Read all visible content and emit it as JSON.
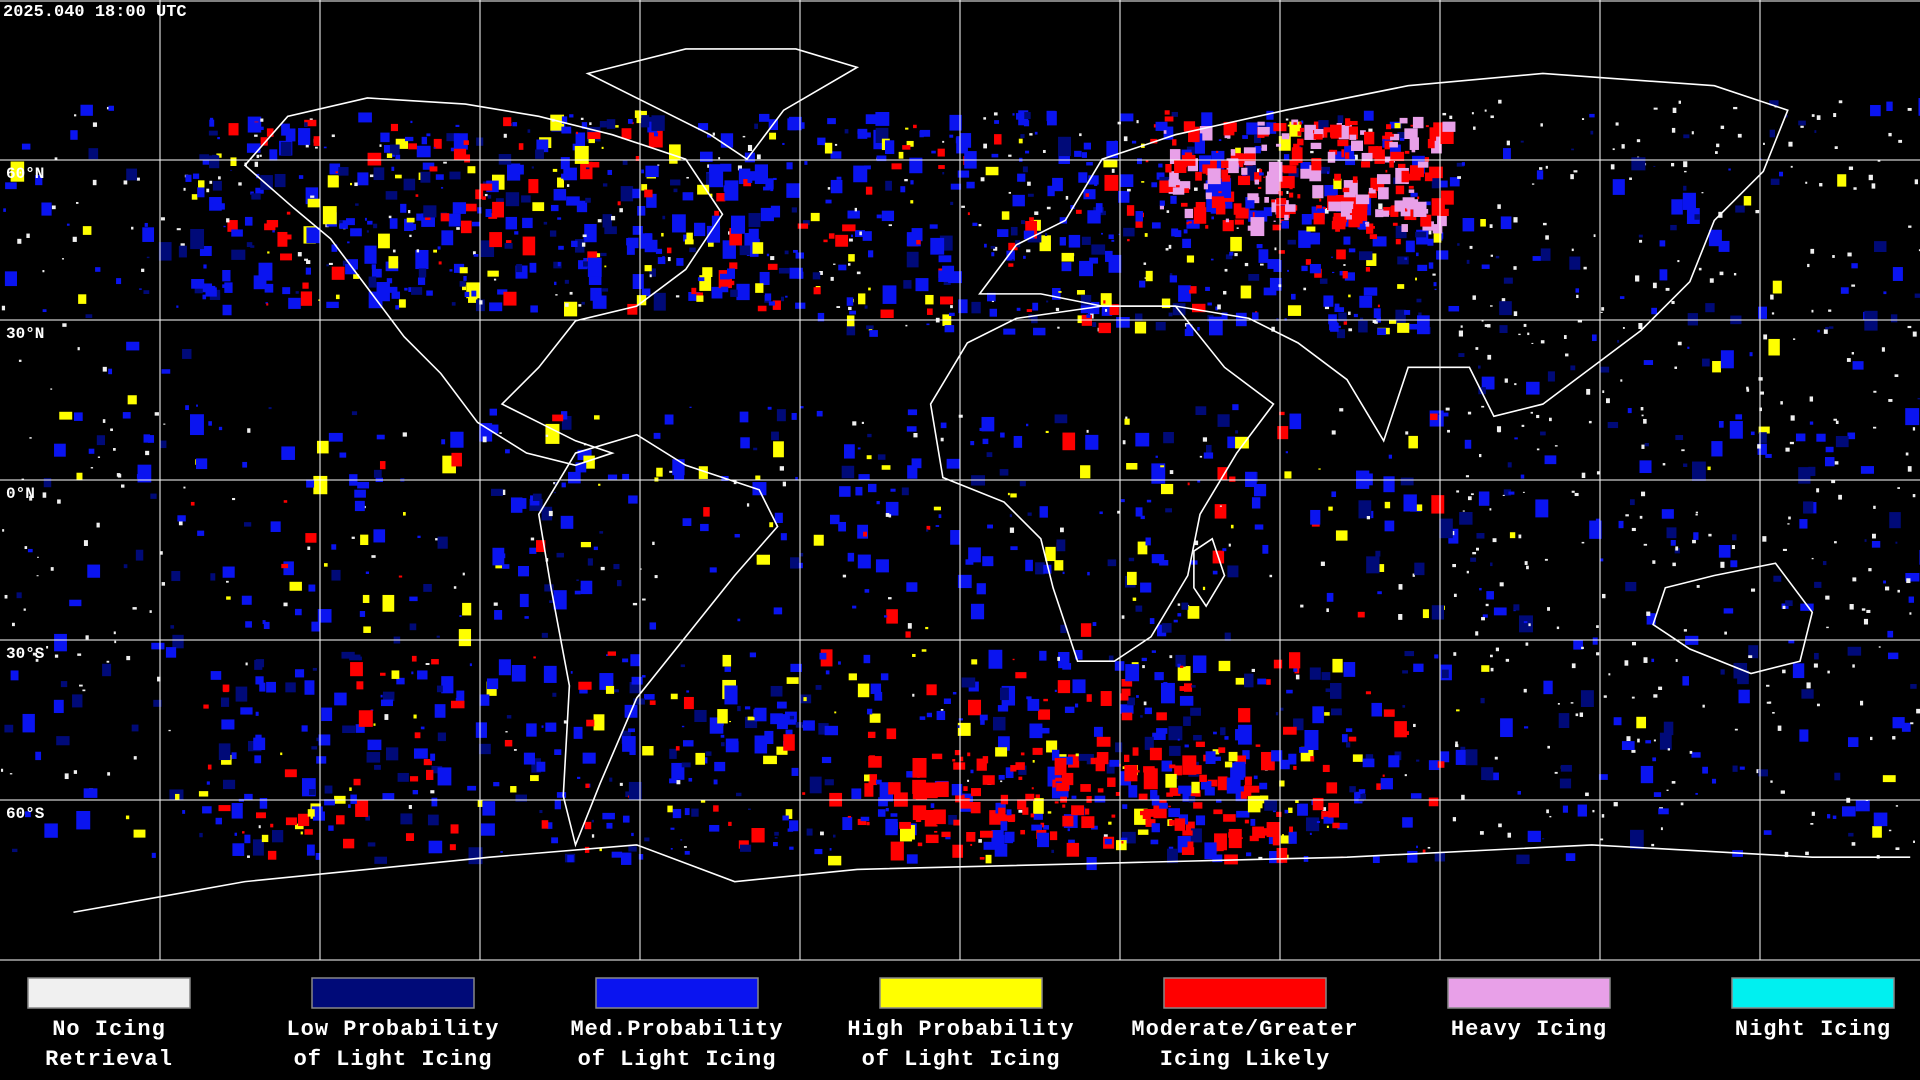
{
  "header": {
    "timestamp": "2025.040 18:00 UTC"
  },
  "map": {
    "latitude_labels": [
      "60°N",
      "30°N",
      "0°N",
      "30°S",
      "60°S"
    ]
  },
  "legend": {
    "items": [
      {
        "label": [
          "No Icing",
          "Retrieval"
        ],
        "color": "#f0f0f0"
      },
      {
        "label": [
          "Low Probability",
          "of Light Icing"
        ],
        "color": "#000a78"
      },
      {
        "label": [
          "Med.Probability",
          "of Light Icing"
        ],
        "color": "#0a14f0"
      },
      {
        "label": [
          "High Probability",
          "of Light Icing"
        ],
        "color": "#ffff00"
      },
      {
        "label": [
          "Moderate/Greater",
          "Icing Likely"
        ],
        "color": "#ff0000"
      },
      {
        "label": [
          "Heavy Icing"
        ],
        "color": "#e8a0e8"
      },
      {
        "label": [
          "Night Icing"
        ],
        "color": "#00f0f0"
      }
    ]
  }
}
